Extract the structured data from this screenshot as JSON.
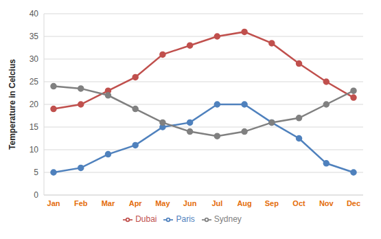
{
  "chart_data": {
    "type": "line",
    "y_label": "Temperature in Celcius",
    "categories": [
      "Jan",
      "Feb",
      "Mar",
      "Apr",
      "May",
      "Jun",
      "Jul",
      "Aug",
      "Sep",
      "Oct",
      "Nov",
      "Dec"
    ],
    "series": [
      {
        "name": "Paris",
        "color": "#4f81bd",
        "marker": "circle",
        "line_style": "solid",
        "values": [
          5,
          6,
          9,
          11,
          15,
          16,
          20,
          20,
          16,
          12.5,
          7,
          5
        ]
      },
      {
        "name": "Dubai",
        "color": "#c0504d",
        "marker": "circle",
        "line_style": "solid",
        "values": [
          19,
          20,
          23,
          26,
          31,
          33,
          35,
          36,
          33.5,
          29,
          25,
          21.5
        ]
      },
      {
        "name": "Sydney",
        "color": "#808080",
        "marker": "circle",
        "line_style": "solid",
        "values": [
          24,
          23.5,
          22,
          19,
          16,
          14,
          13,
          14,
          16,
          17,
          20,
          23
        ]
      }
    ],
    "ylim": [
      0,
      40
    ],
    "yticks": [
      0,
      5,
      10,
      15,
      20,
      25,
      30,
      35,
      40
    ],
    "grid": true,
    "legend": "bottom"
  }
}
